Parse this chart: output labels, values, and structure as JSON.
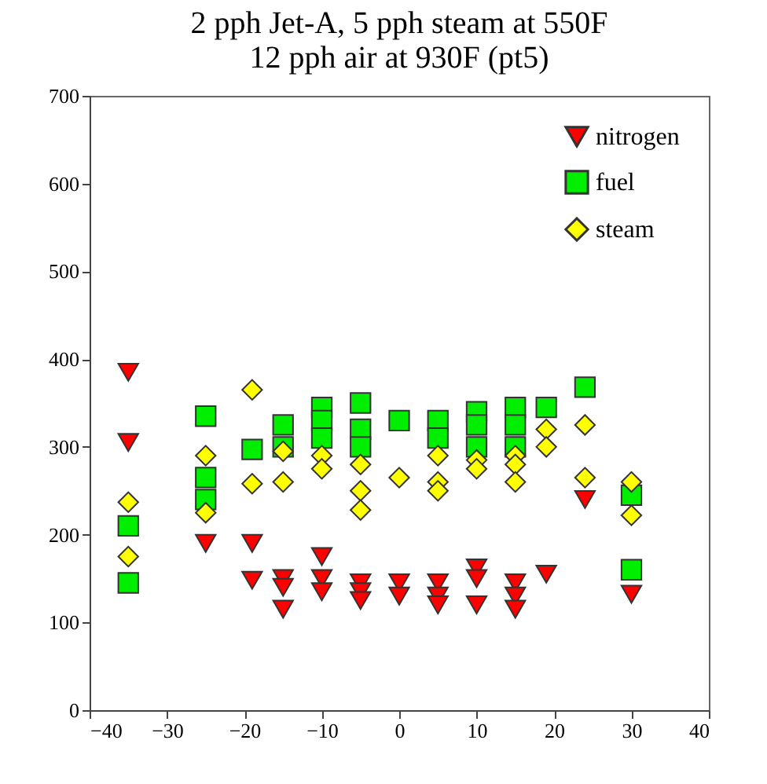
{
  "chart_data": {
    "type": "scatter",
    "title": [
      "2 pph Jet-A, 5 pph steam at 550F",
      "12 pph air at 930F (pt5)"
    ],
    "xlim": [
      -40,
      40
    ],
    "xticks": [
      -40,
      -30,
      -20,
      -10,
      0,
      10,
      20,
      30,
      40
    ],
    "ylim": [
      0,
      700
    ],
    "yticks": [
      0,
      100,
      200,
      300,
      400,
      500,
      600,
      700
    ],
    "legend": "top right",
    "grid": false,
    "series": [
      {
        "name": "nitrogen",
        "color": "#ff0000",
        "marker": "triangle",
        "x": [
          -35,
          -35,
          -25,
          -19,
          -19,
          -15,
          -15,
          -15,
          -10,
          -10,
          -10,
          -5,
          -5,
          -5,
          0,
          0,
          5,
          5,
          5,
          10,
          10,
          10,
          15,
          15,
          15,
          19,
          24,
          30
        ],
        "values": [
          385,
          305,
          190,
          190,
          148,
          150,
          140,
          115,
          175,
          150,
          135,
          145,
          135,
          125,
          145,
          130,
          145,
          130,
          120,
          162,
          150,
          120,
          145,
          130,
          115,
          155,
          240,
          132
        ]
      },
      {
        "name": "fuel",
        "color": "#00ee00",
        "marker": "square",
        "x": [
          -35,
          -35,
          -25,
          -25,
          -25,
          -19,
          -15,
          -15,
          -10,
          -10,
          -10,
          -5,
          -5,
          -5,
          0,
          5,
          5,
          10,
          10,
          10,
          15,
          15,
          15,
          19,
          24,
          30,
          30
        ],
        "values": [
          210,
          145,
          335,
          265,
          240,
          297,
          325,
          300,
          345,
          330,
          310,
          350,
          320,
          300,
          330,
          330,
          310,
          340,
          325,
          300,
          345,
          325,
          300,
          345,
          368,
          245,
          160
        ]
      },
      {
        "name": "steam",
        "color": "#ffff00",
        "marker": "diamond",
        "x": [
          -35,
          -35,
          -25,
          -25,
          -19,
          -19,
          -15,
          -15,
          -10,
          -10,
          -5,
          -5,
          -5,
          0,
          5,
          5,
          5,
          10,
          10,
          15,
          15,
          15,
          19,
          19,
          24,
          24,
          30,
          30
        ],
        "values": [
          237,
          175,
          290,
          225,
          365,
          258,
          295,
          260,
          290,
          275,
          280,
          250,
          228,
          265,
          290,
          260,
          250,
          285,
          275,
          290,
          280,
          260,
          320,
          300,
          325,
          265,
          260,
          222
        ]
      }
    ]
  }
}
